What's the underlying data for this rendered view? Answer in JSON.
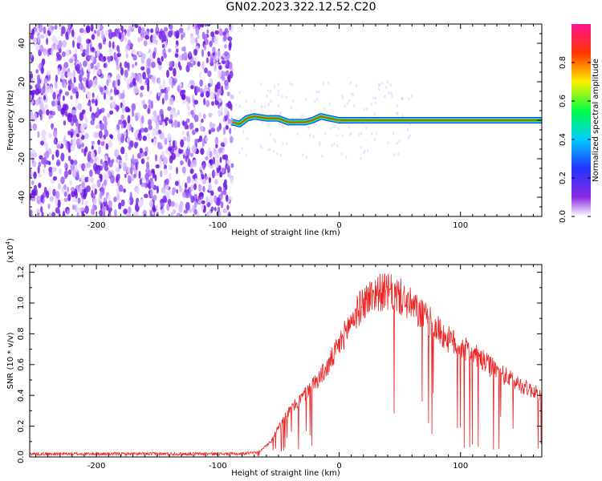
{
  "title": "GN02.2023.322.12.52.C20",
  "chart_data": [
    {
      "type": "heatmap",
      "xlabel": "Height of straight line (km)",
      "ylabel": "Frequency (Hz)",
      "xlim": [
        -255,
        167
      ],
      "ylim": [
        -50,
        50
      ],
      "x_ticks": [
        -200,
        -100,
        0,
        100
      ],
      "y_ticks": [
        -40,
        -20,
        0,
        20,
        40
      ],
      "noise_region_x": [
        -255,
        -88
      ],
      "signal_track": [
        {
          "x": -88,
          "y": -1
        },
        {
          "x": -82,
          "y": -2
        },
        {
          "x": -76,
          "y": 1
        },
        {
          "x": -70,
          "y": 2
        },
        {
          "x": -60,
          "y": 1
        },
        {
          "x": -50,
          "y": 1
        },
        {
          "x": -42,
          "y": -1
        },
        {
          "x": -35,
          "y": -1
        },
        {
          "x": -28,
          "y": -1
        },
        {
          "x": -22,
          "y": 0
        },
        {
          "x": -15,
          "y": 2
        },
        {
          "x": -8,
          "y": 1
        },
        {
          "x": 0,
          "y": 0
        },
        {
          "x": 167,
          "y": 0
        }
      ],
      "colorbar": {
        "label": "Normalized spectral amplitude",
        "ticks": [
          0.0,
          0.2,
          0.4,
          0.6,
          0.8
        ],
        "range": [
          0,
          1
        ],
        "colors": [
          "#ffffff",
          "#8a2be2",
          "#2233ff",
          "#00ccff",
          "#00ff44",
          "#ffee00",
          "#ff3300",
          "#ff1493"
        ]
      }
    },
    {
      "type": "line",
      "xlabel": "Height of straight line (km)",
      "ylabel": "SNR (10 * v/v)",
      "y_multiplier": "(x10",
      "y_exponent": "4",
      "xlim": [
        -255,
        167
      ],
      "ylim": [
        0,
        1.25
      ],
      "x_ticks": [
        -200,
        -100,
        0,
        100
      ],
      "y_ticks": [
        "0.0",
        "0.2",
        "0.4",
        "0.6",
        "0.8",
        "1.0",
        "1.2"
      ],
      "series": [
        {
          "color": "#ee2222",
          "x": [
            -255,
            -200,
            -150,
            -100,
            -80,
            -65,
            -55,
            -50,
            -45,
            -40,
            -30,
            -20,
            -10,
            0,
            10,
            20,
            30,
            40,
            50,
            60,
            70,
            80,
            90,
            100,
            110,
            120,
            130,
            140,
            150,
            160,
            167
          ],
          "y": [
            0.02,
            0.02,
            0.02,
            0.02,
            0.02,
            0.04,
            0.12,
            0.22,
            0.28,
            0.33,
            0.42,
            0.52,
            0.62,
            0.78,
            0.95,
            1.08,
            1.15,
            1.15,
            1.12,
            1.05,
            0.98,
            0.9,
            0.82,
            0.77,
            0.72,
            0.66,
            0.6,
            0.55,
            0.5,
            0.46,
            0.42
          ]
        }
      ]
    }
  ]
}
